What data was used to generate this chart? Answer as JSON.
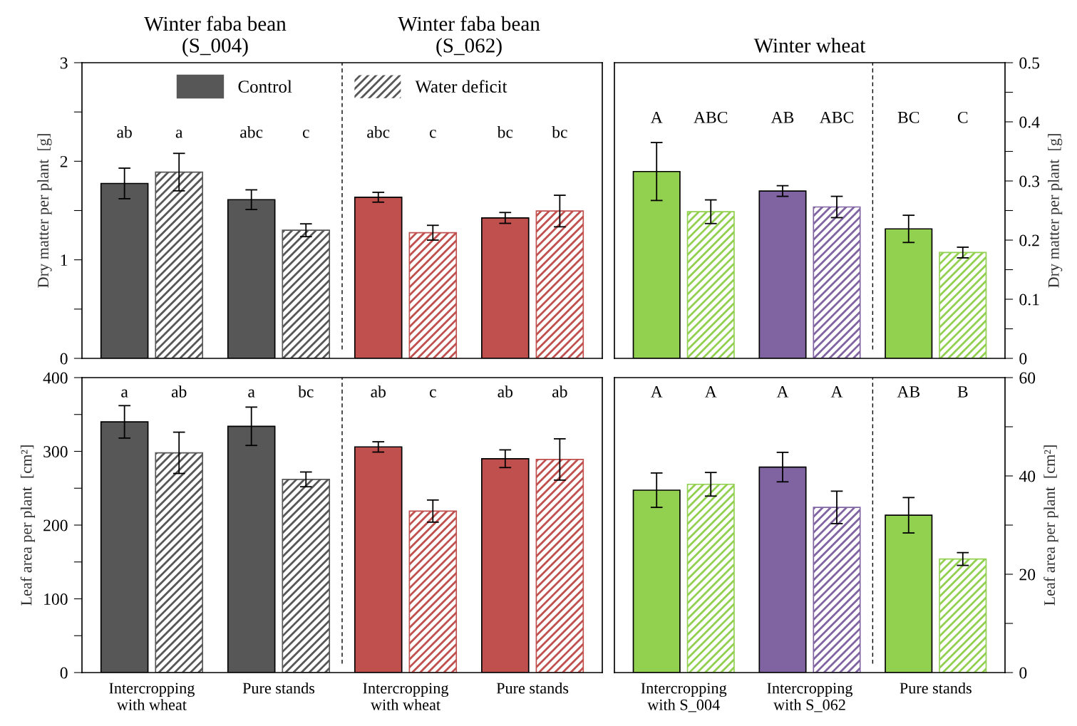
{
  "chart_data": [
    {
      "type": "bar",
      "title": "Winter faba bean\n(S_004)",
      "subtitle": "Winter faba bean\n(S_062)",
      "ylabel": "Dry matter per plant  [g]",
      "categories": [
        null,
        null,
        null,
        null
      ],
      "tick_labels": "y",
      "legend": "top",
      "ylim": [
        0,
        3
      ],
      "yticks": [
        0,
        {
          "value": 0.5,
          "label": null
        },
        1,
        {
          "value": 1.5,
          "label": null
        },
        2,
        {
          "value": 2.5,
          "label": null
        },
        3
      ],
      "annotations": [
        "ab",
        "a",
        "abc",
        "c",
        "abc",
        "c",
        "bc",
        "bc"
      ],
      "series": [
        {
          "name": "Control",
          "colors": [
            "#575757",
            "#575757",
            "#c0504d",
            "#c0504d"
          ],
          "values": [
            1.775,
            1.61,
            1.635,
            1.425
          ],
          "errors": [
            0.155,
            0.1,
            0.05,
            0.055
          ]
        },
        {
          "name": "Water deficit",
          "colors": [
            "#575757",
            "#575757",
            "#c0504d",
            "#c0504d"
          ],
          "values": [
            1.89,
            1.3,
            1.275,
            1.495
          ],
          "errors": [
            0.19,
            0.065,
            0.075,
            0.16
          ]
        }
      ]
    },
    {
      "type": "bar",
      "title": "Winter wheat",
      "ylabel": "Dry matter per plant  [g]",
      "categories": [
        null,
        null,
        null
      ],
      "tick_labels": "y",
      "ylim": [
        0,
        0.5
      ],
      "yticks": [
        0,
        {
          "value": 0.05,
          "label": null
        },
        0.1,
        {
          "value": 0.15,
          "label": null
        },
        0.2,
        {
          "value": 0.25,
          "label": null
        },
        0.3,
        {
          "value": 0.35,
          "label": null
        },
        0.4,
        {
          "value": 0.45,
          "label": null
        },
        0.5
      ],
      "annotations": [
        "A",
        "ABC",
        "AB",
        "ABC",
        "BC",
        "C"
      ],
      "series": [
        {
          "colors": [
            "#92d050",
            "#8064a2",
            "#92d050"
          ],
          "values": [
            0.316,
            0.283,
            0.219
          ],
          "errors": [
            0.049,
            0.009,
            0.023
          ]
        },
        {
          "colors": [
            "#92d050",
            "#8064a2",
            "#92d050"
          ],
          "values": [
            0.248,
            0.256,
            0.179
          ],
          "errors": [
            0.02,
            0.018,
            0.009
          ]
        }
      ]
    },
    {
      "type": "bar",
      "ylabel": "Leaf area per plant  [cm²]",
      "categories": [
        "Intercropping\nwith wheat",
        "Pure stands",
        "Intercropping\nwith wheat",
        "Pure stands"
      ],
      "ylim": [
        0,
        400
      ],
      "yticks": [
        0,
        {
          "value": 50,
          "label": null
        },
        100,
        {
          "value": 150,
          "label": null
        },
        200,
        {
          "value": 250,
          "label": null
        },
        300,
        {
          "value": 350,
          "label": null
        },
        400
      ],
      "annotations": [
        "a",
        "ab",
        "a",
        "bc",
        "ab",
        "c",
        "ab",
        "ab"
      ],
      "series": [
        {
          "colors": [
            "#575757",
            "#575757",
            "#c0504d",
            "#c0504d"
          ],
          "values": [
            340,
            334,
            306,
            290
          ],
          "errors": [
            22,
            26,
            7,
            12
          ]
        },
        {
          "colors": [
            "#575757",
            "#575757",
            "#c0504d",
            "#c0504d"
          ],
          "values": [
            298,
            262,
            219,
            289
          ],
          "errors": [
            28,
            10,
            15,
            28
          ]
        }
      ]
    },
    {
      "type": "bar",
      "ylabel": "Leaf area per plant  [cm²]",
      "categories": [
        "Intercropping\nwith S_004",
        "Intercropping\nwith S_062",
        "Pure stands"
      ],
      "ylim": [
        0,
        60
      ],
      "yticks": [
        0,
        {
          "value": 10,
          "label": null
        },
        20,
        {
          "value": 30,
          "label": null
        },
        40,
        {
          "value": 50,
          "label": null
        },
        60
      ],
      "annotations": [
        "A",
        "A",
        "A",
        "A",
        "AB",
        "B"
      ],
      "series": [
        {
          "colors": [
            "#92d050",
            "#8064a2",
            "#92d050"
          ],
          "values": [
            37.1,
            41.8,
            32.0
          ],
          "errors": [
            3.5,
            3,
            3.6
          ]
        },
        {
          "colors": [
            "#92d050",
            "#8064a2",
            "#92d050"
          ],
          "values": [
            38.3,
            33.6,
            23.1
          ],
          "errors": [
            2.4,
            3.3,
            1.3
          ]
        }
      ]
    }
  ]
}
